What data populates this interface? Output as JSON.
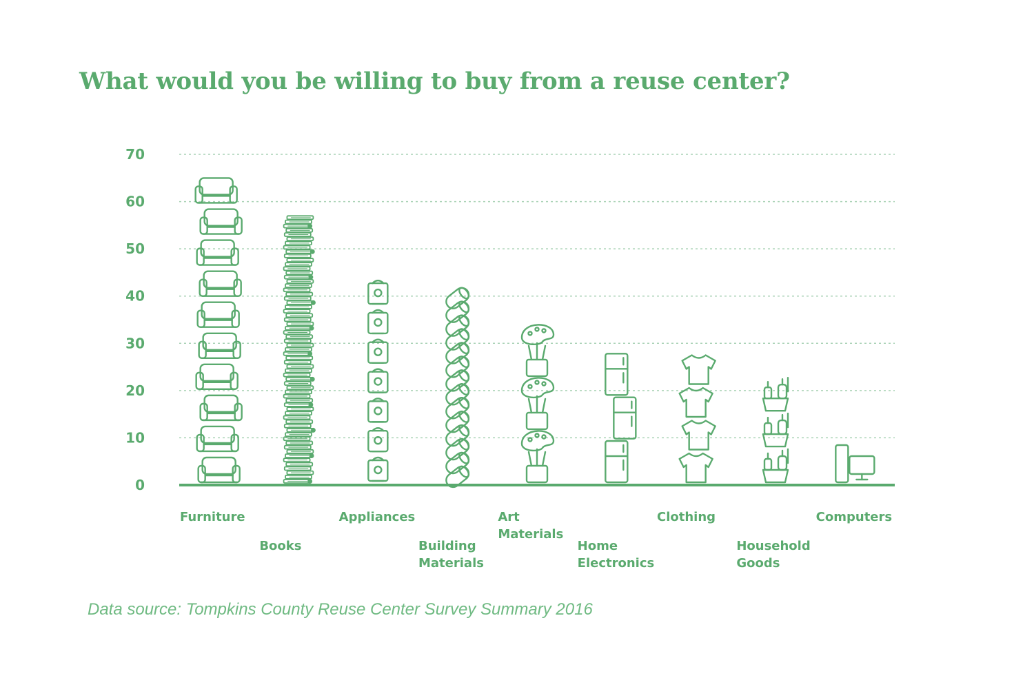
{
  "chart_data": {
    "type": "bar",
    "title": "What would you be willing to buy from a reuse center?",
    "source": "Data source: Tompkins County Reuse Center Survey Summary 2016",
    "xlabel": "",
    "ylabel": "",
    "ylim": [
      0,
      70
    ],
    "yticks": [
      0,
      10,
      20,
      30,
      40,
      50,
      60,
      70
    ],
    "grid": true,
    "categories": [
      "Furniture",
      "Books",
      "Appliances",
      "Building Materials",
      "Art Materials",
      "Home Electronics",
      "Clothing",
      "Household Goods",
      "Computers"
    ],
    "category_label_lines": [
      [
        "Furniture"
      ],
      [
        "Books"
      ],
      [
        "Appliances"
      ],
      [
        "Building",
        "Materials"
      ],
      [
        "Art",
        "Materials"
      ],
      [
        "Home",
        "Electronics"
      ],
      [
        "Clothing"
      ],
      [
        "Household",
        "Goods"
      ],
      [
        "Computers"
      ]
    ],
    "label_rows": [
      "upper",
      "lower",
      "upper",
      "lower",
      "upper",
      "lower",
      "upper",
      "lower",
      "upper"
    ],
    "values": [
      66,
      57,
      44,
      41,
      34,
      28,
      28,
      23,
      9
    ],
    "icons": [
      "sofa-icon",
      "book-icon",
      "appliance-icon",
      "pipe-icon",
      "art-supplies-icon",
      "refrigerator-icon",
      "tshirt-icon",
      "cleaning-supplies-icon",
      "computer-icon"
    ],
    "color": "#5aaa6e",
    "grid_color": "#a9d2b5"
  }
}
